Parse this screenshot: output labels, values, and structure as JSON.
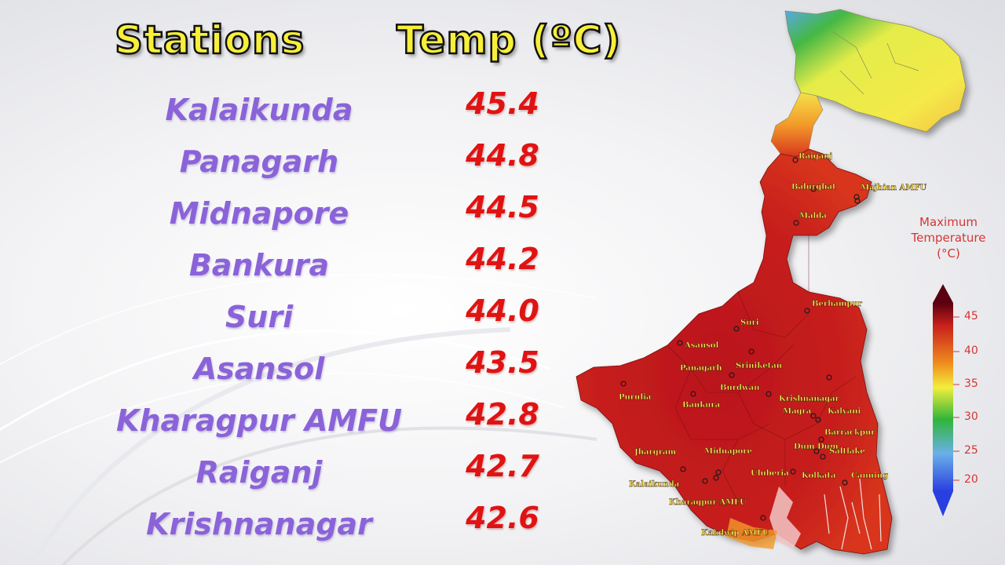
{
  "headers": {
    "stations": "Stations",
    "temp": "Temp (ºC)"
  },
  "rows": [
    {
      "station": "Kalaikunda",
      "temp": "45.4"
    },
    {
      "station": "Panagarh",
      "temp": "44.8"
    },
    {
      "station": "Midnapore",
      "temp": "44.5"
    },
    {
      "station": "Bankura",
      "temp": "44.2"
    },
    {
      "station": "Suri",
      "temp": "44.0"
    },
    {
      "station": "Asansol",
      "temp": "43.5"
    },
    {
      "station": "Kharagpur AMFU",
      "temp": "42.8"
    },
    {
      "station": "Raiganj",
      "temp": "42.7"
    },
    {
      "station": "Krishnanagar",
      "temp": "42.6"
    }
  ],
  "map": {
    "labels": [
      "Raiganj",
      "Balurghat",
      "Majhian AMFU",
      "Malda",
      "Berhampur",
      "Suri",
      "Asansol",
      "Sriniketan",
      "Panagarh",
      "Burdwan",
      "Krishnanagar",
      "Purulia",
      "Bankura",
      "Magra",
      "Kalyani",
      "Barrackpur",
      "Jhargram",
      "Midnapore",
      "Dum Dum",
      "Saltlake",
      "Uluberia",
      "Kolkata",
      "Canning",
      "Kalaikunda",
      "Kharagpur AMFU",
      "Kakdwip AMFU"
    ]
  },
  "legend": {
    "title_line1": "Maximum",
    "title_line2": "Temperature",
    "title_line3": "(°C)",
    "ticks": [
      "45",
      "40",
      "35",
      "30",
      "25",
      "20"
    ],
    "colors": [
      "#7a0010",
      "#d42a1c",
      "#f08c1e",
      "#f2ee3c",
      "#2fb53a",
      "#6ab0e8",
      "#2a3fe0"
    ]
  }
}
